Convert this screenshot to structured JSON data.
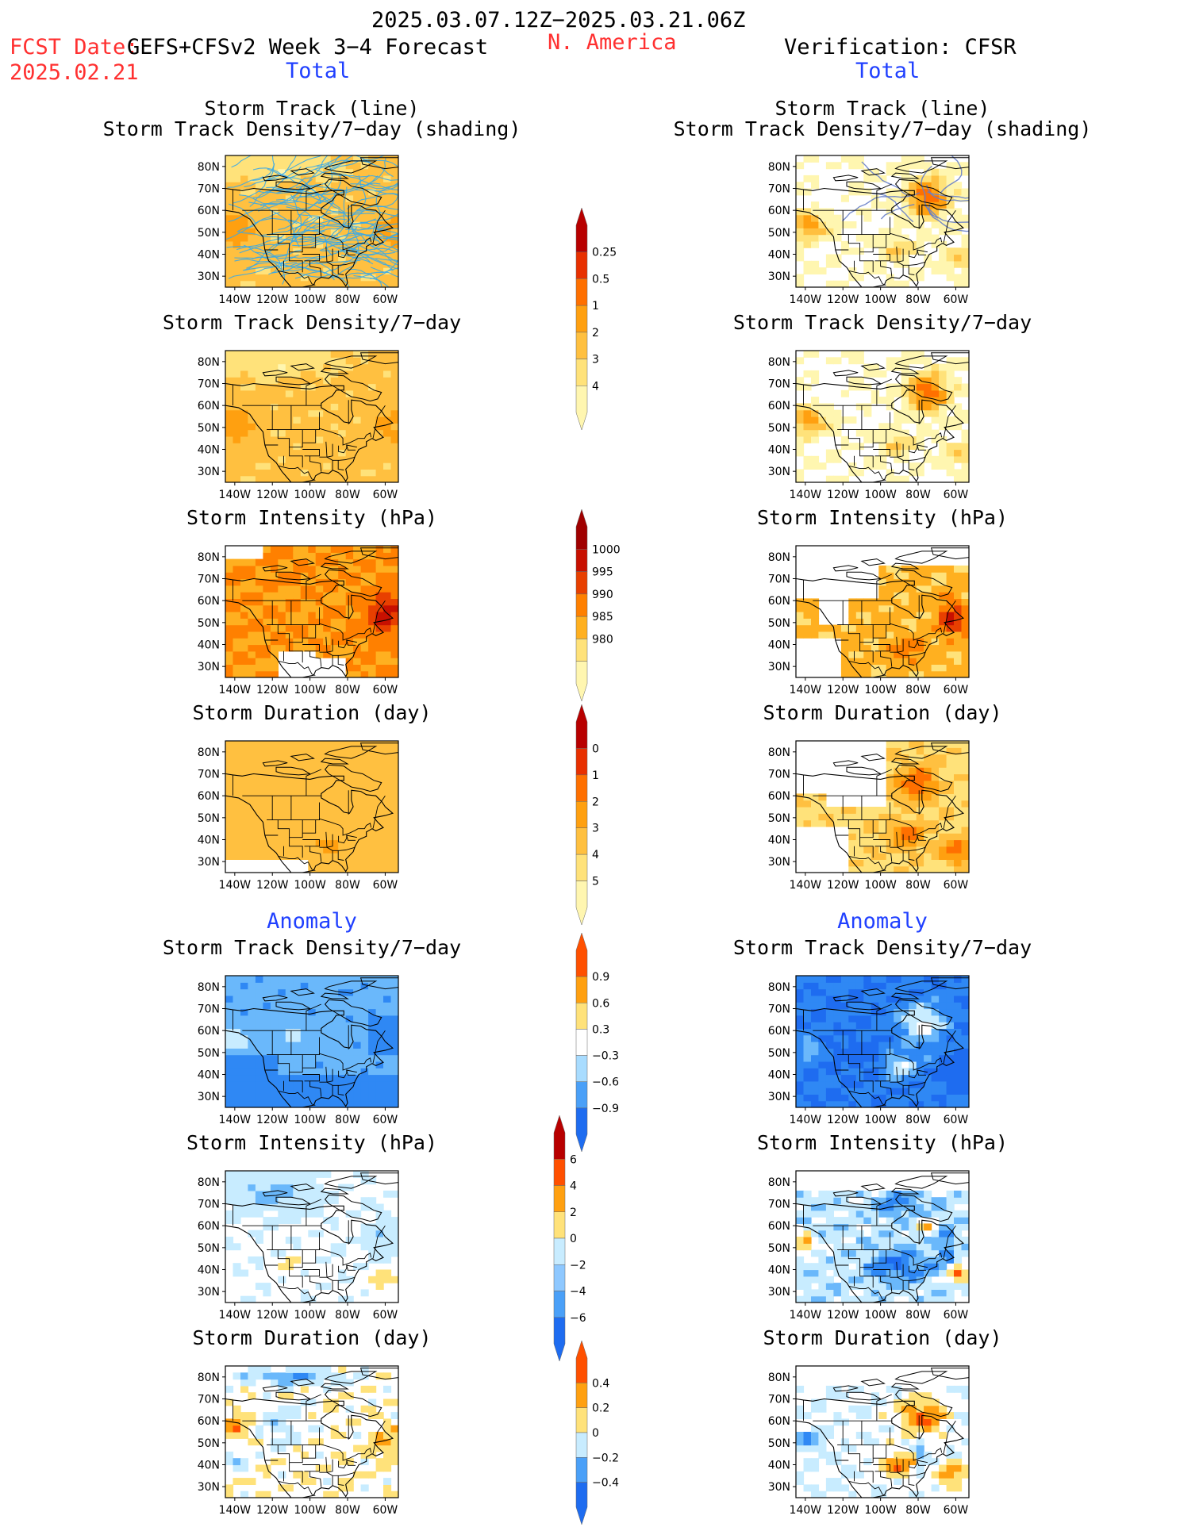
{
  "header": {
    "date_range": "2025.03.07.12Z−2025.03.21.06Z",
    "fcst_label": "FCST Date:",
    "fcst_date": "2025.02.21",
    "forecast_title": "GEFS+CFSv2 Week 3−4 Forecast",
    "region": "N. America",
    "verification": "Verification: CFSR",
    "total_label": "Total",
    "anomaly_label": "Anomaly"
  },
  "panel_titles": {
    "storm_track_line": "Storm Track (line)",
    "storm_track_shading": "Storm Track Density/7−day (shading)",
    "density": "Storm Track Density/7−day",
    "intensity": "Storm Intensity (hPa)",
    "duration": "Storm Duration (day)"
  },
  "map_axes": {
    "lat_labels": [
      "80N",
      "70N",
      "60N",
      "50N",
      "40N",
      "30N"
    ],
    "lon_labels": [
      "140W",
      "120W",
      "100W",
      "80W",
      "60W"
    ]
  },
  "colorbars": [
    {
      "id": "density_total",
      "colors": [
        "#fff6b0",
        "#ffe27a",
        "#ffc040",
        "#ffa010",
        "#ff7000",
        "#e83000",
        "#b80000"
      ],
      "labels": [
        "0.25",
        "0.5",
        "1",
        "2",
        "3",
        "4"
      ],
      "tail": "bottom"
    },
    {
      "id": "intensity_total",
      "colors": [
        "#fff6b0",
        "#ffe27a",
        "#ffb020",
        "#ff8000",
        "#e84000",
        "#c81000",
        "#a00000"
      ],
      "labels": [
        "1000",
        "995",
        "990",
        "985",
        "980"
      ],
      "tail": "top"
    },
    {
      "id": "duration_total",
      "colors": [
        "#fff6b0",
        "#ffe27a",
        "#ffc040",
        "#ffa010",
        "#ff7000",
        "#e83000",
        "#b80000"
      ],
      "labels": [
        "0",
        "1",
        "2",
        "3",
        "4",
        "5"
      ],
      "tail": "bottom"
    },
    {
      "id": "density_anom",
      "colors": [
        "#1e6cf0",
        "#4aa0f8",
        "#a8dcff",
        "#ffffff",
        "#ffe27a",
        "#ffa010",
        "#ff5000"
      ],
      "labels": [
        "0.9",
        "0.6",
        "0.3",
        "−0.3",
        "−0.6",
        "−0.9"
      ],
      "tail": "both"
    },
    {
      "id": "intensity_anom",
      "colors": [
        "#1e6cf0",
        "#4aa0f8",
        "#8ec8ff",
        "#c8ecff",
        "#ffe27a",
        "#ffa010",
        "#ff5000",
        "#b80000"
      ],
      "labels": [
        "6",
        "4",
        "2",
        "0",
        "−2",
        "−4",
        "−6"
      ],
      "tail": "both"
    },
    {
      "id": "duration_anom",
      "colors": [
        "#1e6cf0",
        "#4aa0f8",
        "#c8ecff",
        "#ffe27a",
        "#ffa010",
        "#ff5000"
      ],
      "labels": [
        "0.4",
        "0.2",
        "0",
        "−0.2",
        "−0.4"
      ],
      "tail": "both"
    }
  ],
  "colors": {
    "header_red": "#ff3030",
    "header_blue": "#2040ff",
    "track_forecast": "#38a8e8",
    "track_obs": "#6880c8"
  }
}
